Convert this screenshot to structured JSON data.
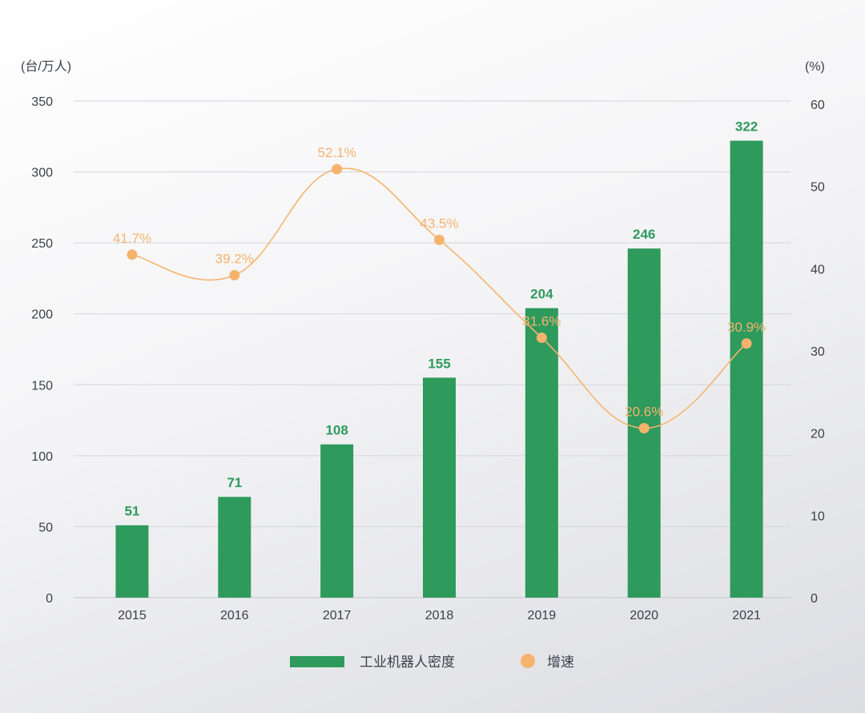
{
  "chart_data": {
    "type": "bar+line",
    "categories": [
      "2015",
      "2016",
      "2017",
      "2018",
      "2019",
      "2020",
      "2021"
    ],
    "series": [
      {
        "name": "工业机器人密度",
        "type": "bar",
        "axis": "left",
        "values": [
          51,
          71,
          108,
          155,
          204,
          246,
          322
        ],
        "labels": [
          "51",
          "71",
          "108",
          "155",
          "204",
          "246",
          "322"
        ],
        "color": "#2e9a5c"
      },
      {
        "name": "增速",
        "type": "line",
        "axis": "right",
        "values": [
          41.7,
          39.2,
          52.1,
          43.5,
          31.6,
          20.6,
          30.9
        ],
        "labels": [
          "41.7%",
          "39.2%",
          "52.1%",
          "43.5%",
          "31.6%",
          "20.6%",
          "30.9%"
        ],
        "color": "#f6b36e"
      }
    ],
    "left_axis": {
      "unit": "(台/万人)",
      "ylim": [
        0,
        350
      ],
      "ticks": [
        "0",
        "50",
        "100",
        "150",
        "200",
        "250",
        "300",
        "350"
      ]
    },
    "right_axis": {
      "unit": "(%)",
      "ylim": [
        0,
        60
      ],
      "ticks": [
        "0",
        "10",
        "20",
        "30",
        "40",
        "50",
        "60"
      ]
    },
    "grid": true,
    "legend_position": "bottom"
  }
}
